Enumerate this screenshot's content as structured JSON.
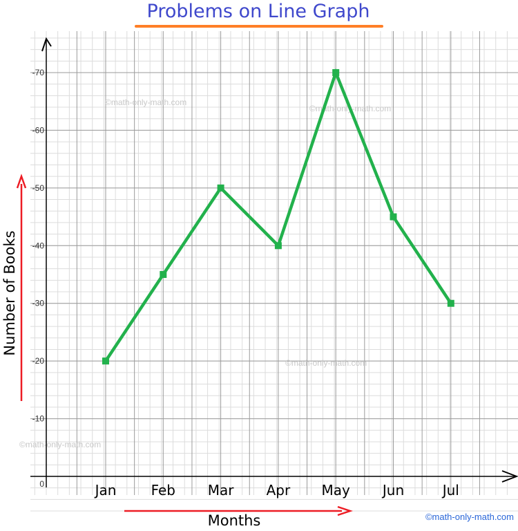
{
  "chart_data": {
    "type": "line",
    "title": "Problems on Line Graph",
    "xlabel": "Months",
    "ylabel": "Number of Books",
    "categories": [
      "Jan",
      "Feb",
      "Mar",
      "Apr",
      "May",
      "Jun",
      "Jul"
    ],
    "values": [
      20,
      35,
      50,
      40,
      70,
      45,
      30
    ],
    "y_ticks": [
      "0",
      "10",
      "20",
      "30",
      "40",
      "50",
      "60",
      "70"
    ],
    "ylim": [
      0,
      70
    ],
    "grid": true,
    "line_color": "#22b14c",
    "title_color": "#3f48cc",
    "title_underline_color": "#ff7f27",
    "arrow_color": "#ed1c24"
  },
  "watermarks": {
    "text": "©math-only-math.com",
    "credit": "©math-only-math.com",
    "credit_color": "#2a66d8"
  }
}
